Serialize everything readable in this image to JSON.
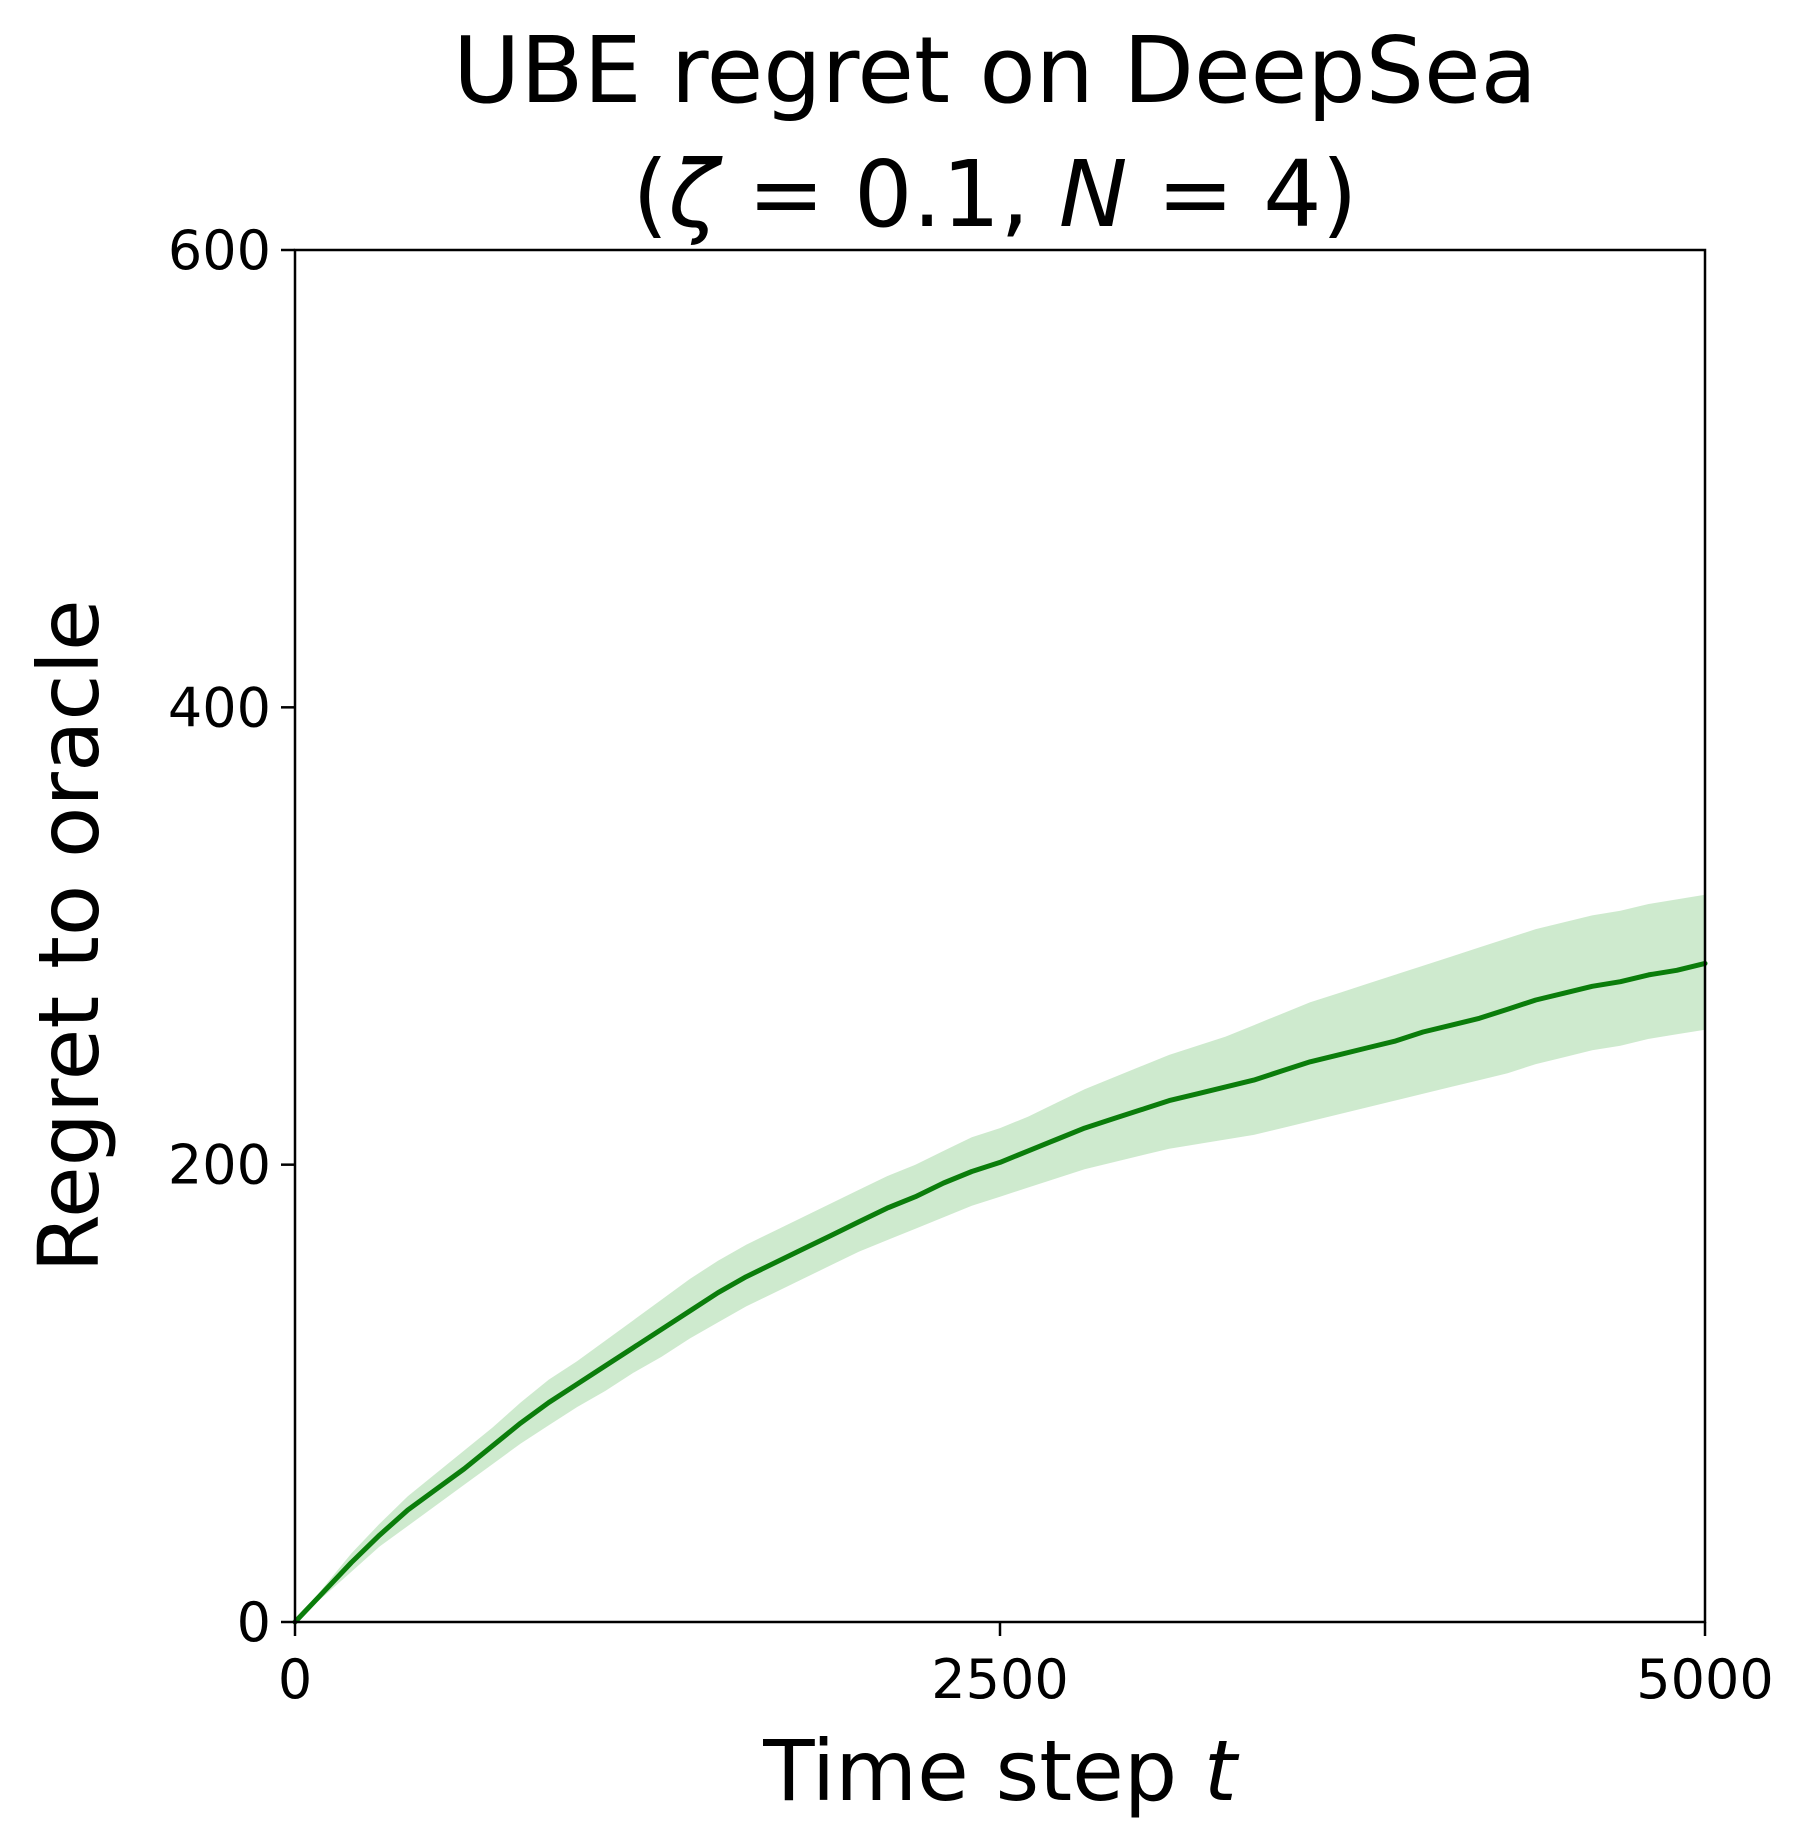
{
  "chart_data": {
    "type": "line",
    "title_line1": "UBE regret on DeepSea",
    "title_line2": "(ζ = 0.1, N = 4)",
    "title_line2_parts": {
      "open": "(",
      "zeta": "ζ",
      "zeta_value": " = 0.1, ",
      "n": "N",
      "n_value": " = 4)"
    },
    "xlabel": "Time step",
    "xlabel_var": "t",
    "ylabel": "Regret to oracle",
    "xlim": [
      0,
      5000
    ],
    "ylim": [
      0,
      600
    ],
    "xticks": [
      0,
      2500,
      5000
    ],
    "yticks": [
      0,
      200,
      400,
      600
    ],
    "xtick_labels": [
      "0",
      "2500",
      "5000"
    ],
    "ytick_labels": [
      "0",
      "200",
      "400",
      "600"
    ],
    "grid": false,
    "legend": "none",
    "colors": {
      "line": "#0b7d0b",
      "band": "#c6e6c6"
    },
    "series": [
      {
        "x": [
          0,
          100,
          200,
          300,
          400,
          500,
          600,
          700,
          800,
          900,
          1000,
          1100,
          1200,
          1300,
          1400,
          1500,
          1600,
          1700,
          1800,
          1900,
          2000,
          2100,
          2200,
          2300,
          2400,
          2500,
          2600,
          2700,
          2800,
          2900,
          3000,
          3100,
          3200,
          3300,
          3400,
          3500,
          3600,
          3700,
          3800,
          3900,
          4000,
          4100,
          4200,
          4300,
          4400,
          4500,
          4600,
          4700,
          4800,
          4900,
          5000
        ],
        "y": [
          0,
          13,
          26,
          38,
          49,
          58,
          67,
          77,
          87,
          96,
          104,
          112,
          120,
          128,
          136,
          144,
          151,
          157,
          163,
          169,
          175,
          181,
          186,
          192,
          197,
          201,
          206,
          211,
          216,
          220,
          224,
          228,
          231,
          234,
          237,
          241,
          245,
          248,
          251,
          254,
          258,
          261,
          264,
          268,
          272,
          275,
          278,
          280,
          283,
          285,
          288
        ],
        "lower": [
          0,
          11,
          22,
          33,
          42,
          51,
          60,
          69,
          78,
          86,
          94,
          101,
          109,
          116,
          124,
          131,
          138,
          144,
          150,
          156,
          162,
          167,
          172,
          177,
          182,
          186,
          190,
          194,
          198,
          201,
          204,
          207,
          209,
          211,
          213,
          216,
          219,
          222,
          225,
          228,
          231,
          234,
          237,
          240,
          244,
          247,
          250,
          252,
          255,
          257,
          259
        ],
        "upper": [
          0,
          15,
          30,
          43,
          55,
          65,
          75,
          85,
          96,
          106,
          114,
          123,
          132,
          141,
          150,
          158,
          165,
          171,
          177,
          183,
          189,
          195,
          200,
          206,
          212,
          216,
          221,
          227,
          233,
          238,
          243,
          248,
          252,
          256,
          261,
          266,
          271,
          275,
          279,
          283,
          287,
          291,
          295,
          299,
          303,
          306,
          309,
          311,
          314,
          316,
          318
        ]
      }
    ]
  }
}
